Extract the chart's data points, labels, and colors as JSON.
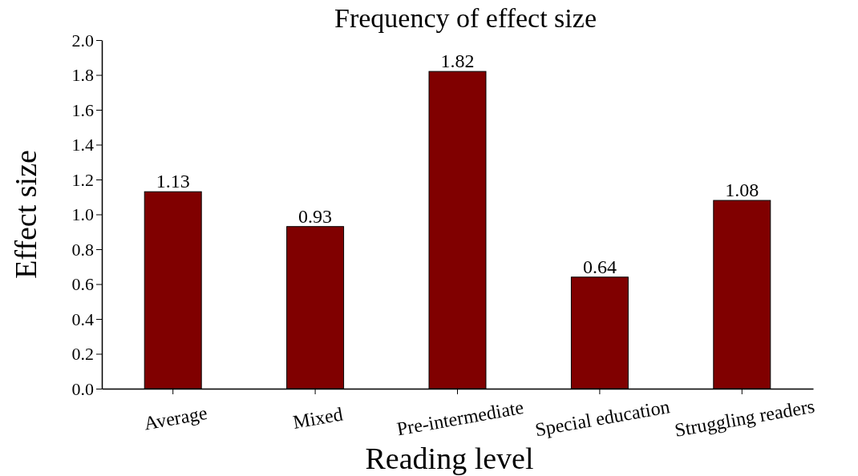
{
  "chart_data": {
    "type": "bar",
    "title": "Frequency of effect size",
    "xlabel": "Reading level",
    "ylabel": "Effect size",
    "categories": [
      "Average",
      "Mixed",
      "Pre-intermediate",
      "Special education",
      "Struggling readers"
    ],
    "values": [
      1.13,
      0.93,
      1.82,
      0.64,
      1.08
    ],
    "color": "#800000",
    "ylim": [
      0,
      2.0
    ],
    "yticks": [
      {
        "value": 0,
        "label": "0.0"
      },
      {
        "value": 0.2,
        "label": "0.2"
      },
      {
        "value": 0.4,
        "label": "0.4"
      },
      {
        "value": 0.6,
        "label": "0.6"
      },
      {
        "value": 0.8,
        "label": "0.8"
      },
      {
        "value": 1.0,
        "label": "1.0"
      },
      {
        "value": 1.2,
        "label": "1.2"
      },
      {
        "value": 1.4,
        "label": "1.4"
      },
      {
        "value": 1.6,
        "label": "1.6"
      },
      {
        "value": 1.8,
        "label": "1.8"
      },
      {
        "value": 2.0,
        "label": "2.0"
      }
    ],
    "data_labels": true
  }
}
